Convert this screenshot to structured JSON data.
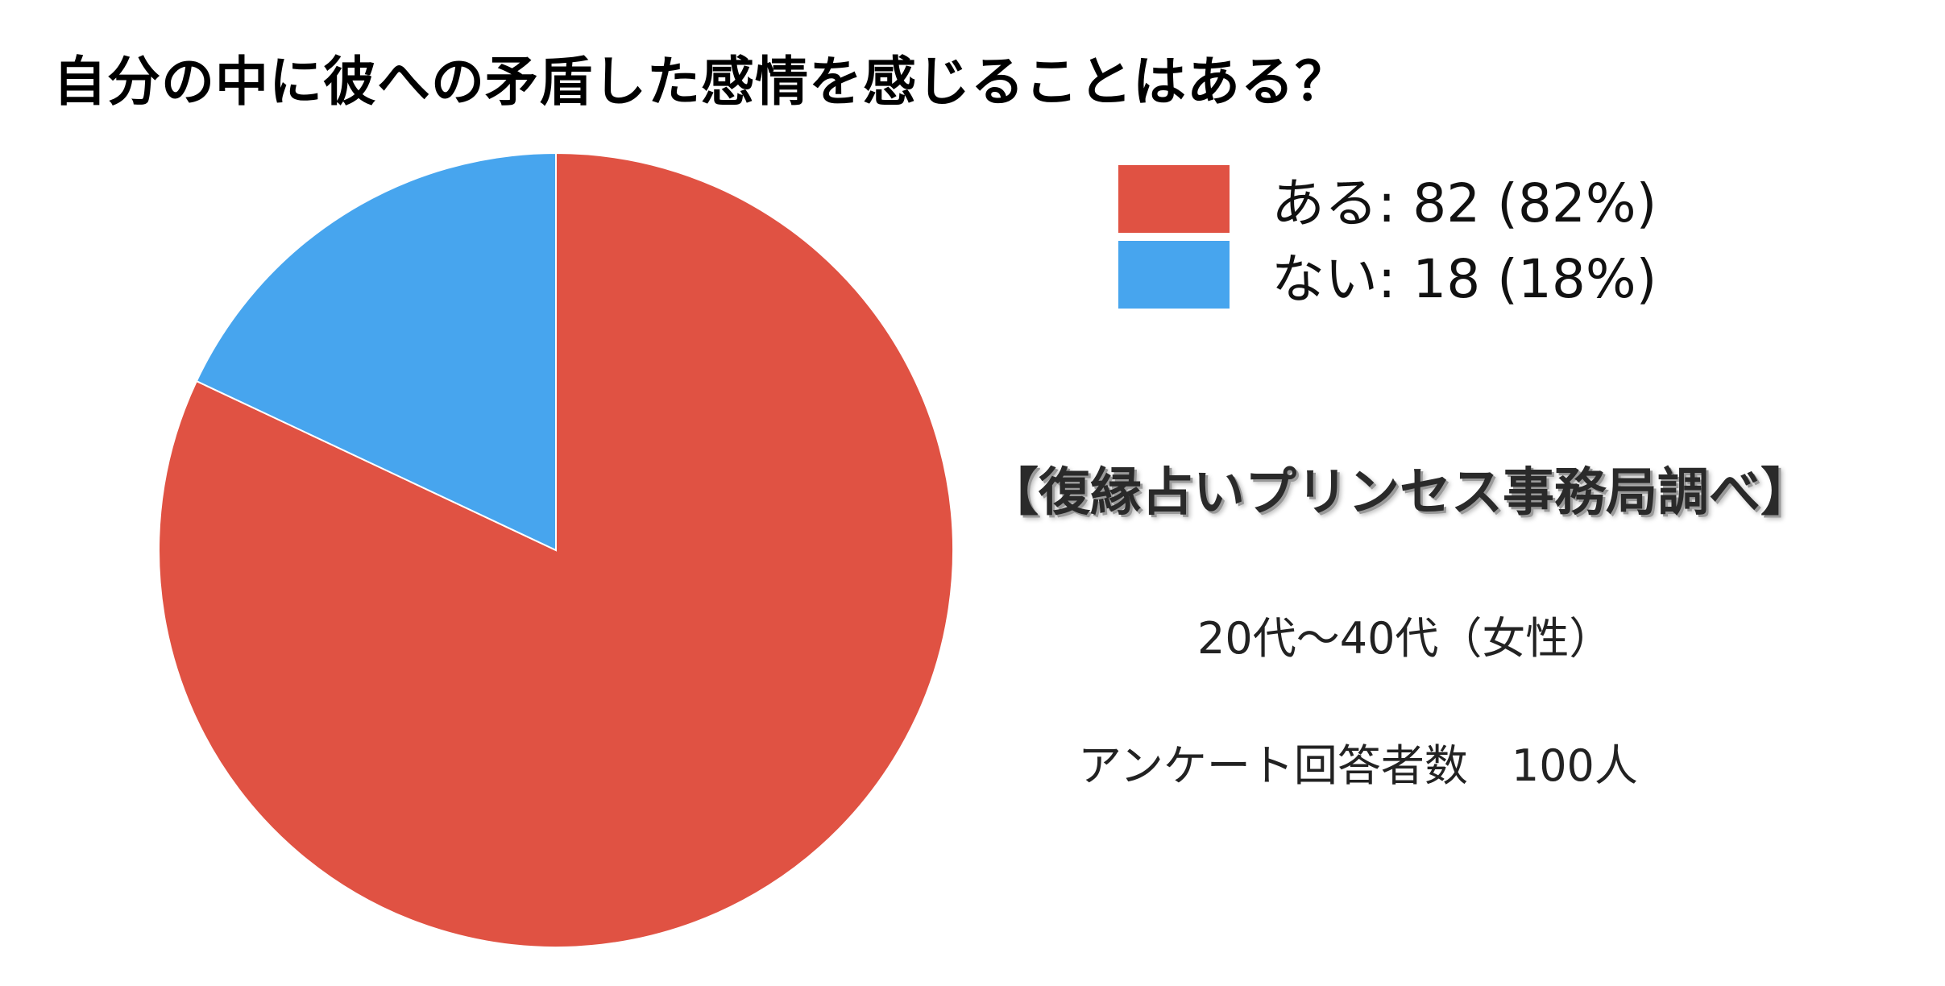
{
  "chart_data": {
    "type": "pie",
    "title": "自分の中に彼への矛盾した感情を感じることはある？",
    "slices": [
      {
        "label": "ある",
        "value": 82,
        "percent": 82,
        "legend": "ある: 82 (82%)",
        "color": "#E05243"
      },
      {
        "label": "ない",
        "value": 18,
        "percent": 18,
        "legend": "ない: 18 (18%)",
        "color": "#47A5EE"
      }
    ],
    "legend_position": "top-right"
  },
  "annotations": {
    "source": "【復縁占いプリンセス事務局調べ】",
    "age_range": "20代〜40代（女性）",
    "respondents": "アンケート回答者数　100人"
  }
}
